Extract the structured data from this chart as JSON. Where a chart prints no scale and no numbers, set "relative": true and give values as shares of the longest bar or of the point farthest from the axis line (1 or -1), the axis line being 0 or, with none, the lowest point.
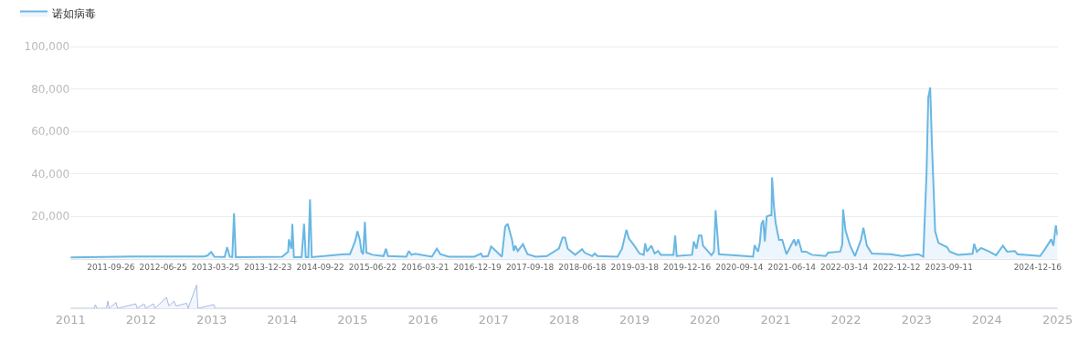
{
  "chart_data": [
    {
      "type": "area",
      "legend": "top left",
      "grid": "y",
      "xlim": [
        "2011-02-28",
        "2025-03-30"
      ],
      "ylim": [
        0,
        122000
      ],
      "xticks": [
        "2011-09-26",
        "2012-06-25",
        "2013-03-25",
        "2013-12-23",
        "2014-09-22",
        "2015-06-22",
        "2016-03-21",
        "2016-12-19",
        "2017-09-18",
        "2018-06-18",
        "2019-03-18",
        "2019-12-16",
        "2020-09-14",
        "2021-06-14",
        "2022-03-14",
        "2022-12-12",
        "2023-09-11",
        "2024-12-16"
      ],
      "yticks": [
        {
          "value": 20000,
          "label": "20,000"
        },
        {
          "value": 40000,
          "label": "40,000"
        },
        {
          "value": 60000,
          "label": "60,000"
        },
        {
          "value": 80000,
          "label": "80,000"
        },
        {
          "value": 100000,
          "label": "100,000"
        }
      ],
      "x": [
        "2011-02-28",
        "2012-01-18",
        "2013-01-23",
        "2013-02-10",
        "2013-03-02",
        "2013-03-19",
        "2013-05-11",
        "2013-05-24",
        "2013-06-07",
        "2013-06-20",
        "2013-06-29",
        "2013-07-08",
        "2014-03-07",
        "2014-04-07",
        "2014-04-11",
        "2014-04-24",
        "2014-04-29",
        "2014-05-07",
        "2014-06-16",
        "2014-06-29",
        "2014-07-08",
        "2014-07-21",
        "2014-07-30",
        "2014-08-08",
        "2015-01-23",
        "2015-02-23",
        "2015-03-07",
        "2015-03-24",
        "2015-04-03",
        "2015-04-16",
        "2015-04-24",
        "2015-05-03",
        "2015-05-12",
        "2015-05-20",
        "2015-06-21",
        "2015-08-17",
        "2015-08-30",
        "2015-09-09",
        "2015-12-14",
        "2015-12-27",
        "2016-01-10",
        "2016-01-28",
        "2016-04-25",
        "2016-05-21",
        "2016-06-08",
        "2016-07-22",
        "2016-12-02",
        "2017-01-06",
        "2017-01-15",
        "2017-02-11",
        "2017-02-28",
        "2017-03-25",
        "2017-04-25",
        "2017-05-12",
        "2017-05-25",
        "2017-06-17",
        "2017-06-26",
        "2017-07-04",
        "2017-07-17",
        "2017-08-13",
        "2017-09-05",
        "2017-10-18",
        "2017-12-15",
        "2018-02-16",
        "2018-03-07",
        "2018-03-20",
        "2018-04-03",
        "2018-05-12",
        "2018-06-17",
        "2018-06-30",
        "2018-08-09",
        "2018-08-22",
        "2018-09-05",
        "2018-12-19",
        "2019-01-11",
        "2019-02-03",
        "2019-02-16",
        "2019-03-16",
        "2019-04-12",
        "2019-05-04",
        "2019-05-12",
        "2019-05-21",
        "2019-06-13",
        "2019-06-30",
        "2019-07-18",
        "2019-08-01",
        "2019-10-06",
        "2019-10-15",
        "2019-10-23",
        "2020-01-11",
        "2020-01-20",
        "2020-02-03",
        "2020-02-16",
        "2020-02-29",
        "2020-03-08",
        "2020-04-21",
        "2020-05-04",
        "2020-05-13",
        "2020-05-17",
        "2020-05-30",
        "2020-06-13",
        "2020-09-10",
        "2020-11-24",
        "2020-12-02",
        "2020-12-20",
        "2020-12-29",
        "2021-01-07",
        "2021-01-16",
        "2021-01-24",
        "2021-02-03",
        "2021-02-20",
        "2021-02-28",
        "2021-03-03",
        "2021-03-12",
        "2021-03-21",
        "2021-04-08",
        "2021-04-25",
        "2021-05-17",
        "2021-06-13",
        "2021-06-26",
        "2021-07-05",
        "2021-07-18",
        "2021-08-05",
        "2021-08-27",
        "2021-09-27",
        "2021-12-07",
        "2021-12-20",
        "2022-02-21",
        "2022-03-04",
        "2022-03-08",
        "2022-03-21",
        "2022-04-13",
        "2022-05-09",
        "2022-06-09",
        "2022-06-22",
        "2022-07-10",
        "2022-08-05",
        "2022-11-11",
        "2023-01-08",
        "2023-04-04",
        "2023-04-30",
        "2023-05-17",
        "2023-05-26",
        "2023-06-05",
        "2023-06-14",
        "2023-07-01",
        "2023-07-18",
        "2023-09-01",
        "2023-09-15",
        "2023-10-28",
        "2024-01-12",
        "2024-01-20",
        "2024-02-03",
        "2024-02-25",
        "2024-04-08",
        "2024-05-13",
        "2024-06-18",
        "2024-07-10",
        "2024-08-19",
        "2024-09-02",
        "2024-12-29",
        "2025-01-25",
        "2025-02-25",
        "2025-03-08",
        "2025-03-21",
        "2025-03-30"
      ],
      "series": [
        {
          "name": "诺如病毒",
          "color": "#6ab7e3",
          "values": [
            700,
            1100,
            1100,
            1500,
            3200,
            1000,
            900,
            5500,
            1000,
            800,
            21500,
            800,
            1000,
            3400,
            9200,
            4800,
            16500,
            800,
            800,
            16500,
            800,
            800,
            28100,
            800,
            2200,
            2200,
            4800,
            8900,
            13000,
            8900,
            3400,
            2200,
            17400,
            2900,
            1900,
            1300,
            4800,
            1300,
            1000,
            3700,
            1900,
            2400,
            1000,
            4800,
            2200,
            1000,
            1000,
            2500,
            1000,
            1300,
            5800,
            3700,
            1000,
            15100,
            16500,
            8900,
            3700,
            6200,
            3700,
            6900,
            2200,
            1000,
            1300,
            4800,
            10000,
            10000,
            4800,
            1900,
            4600,
            2900,
            1300,
            2500,
            1300,
            1000,
            4800,
            13700,
            9600,
            6200,
            2500,
            1900,
            7300,
            3400,
            6200,
            2500,
            3700,
            1900,
            1900,
            11000,
            1300,
            1900,
            8200,
            4800,
            11000,
            11000,
            6200,
            1700,
            3400,
            22900,
            17600,
            2200,
            2100,
            1500,
            1000,
            6400,
            3400,
            7500,
            16500,
            18200,
            8200,
            19900,
            20600,
            20600,
            38400,
            25600,
            17200,
            8900,
            8900,
            2200,
            6900,
            9200,
            6200,
            9200,
            3400,
            3400,
            1900,
            1300,
            2900,
            3400,
            6900,
            23300,
            13300,
            6400,
            1300,
            8900,
            14700,
            6200,
            2500,
            2200,
            1300,
            2200,
            1000,
            40400,
            76000,
            80800,
            54100,
            13000,
            7500,
            5500,
            3400,
            1900,
            2400,
            7100,
            3400,
            5100,
            3400,
            1700,
            6200,
            3400,
            3700,
            2200,
            1300,
            4800,
            9200,
            6200,
            15800,
            11000
          ]
        }
      ]
    },
    {
      "type": "area",
      "relative": true,
      "tick_labels": "x",
      "xlim": [
        "2011",
        "2025"
      ],
      "xticks": [
        "2011",
        "2012",
        "2013",
        "2014",
        "2015",
        "2016",
        "2017",
        "2018",
        "2019",
        "2020",
        "2021",
        "2022",
        "2023",
        "2024",
        "2025"
      ],
      "x": [
        "2011-01-01",
        "2011-05-03",
        "2011-05-10",
        "2011-05-17",
        "2011-07-06",
        "2011-07-13",
        "2011-07-20",
        "2011-08-25",
        "2011-09-01",
        "2011-12-05",
        "2011-12-12",
        "2012-01-18",
        "2012-01-25",
        "2012-03-06",
        "2012-03-13",
        "2012-05-12",
        "2012-05-25",
        "2012-06-20",
        "2012-07-01",
        "2012-08-25",
        "2012-09-01",
        "2012-10-15",
        "2012-10-22",
        "2013-01-12",
        "2013-01-19",
        "2025-01-01"
      ],
      "color": "#a5b9e6",
      "values": [
        0,
        0,
        0.16,
        0,
        0,
        0.31,
        0,
        0.25,
        0,
        0.19,
        0,
        0.19,
        0,
        0.19,
        0,
        0.47,
        0.1,
        0.31,
        0.1,
        0.22,
        0,
        1,
        0,
        0.16,
        0,
        0
      ]
    }
  ]
}
